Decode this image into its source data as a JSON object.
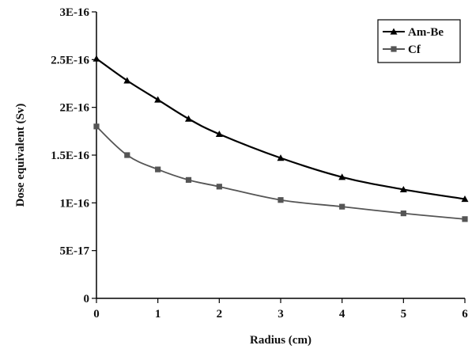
{
  "chart_data": {
    "type": "line",
    "title": "",
    "xlabel": "Radius (cm)",
    "ylabel": "Dose equivalent (Sv)",
    "xlim": [
      0,
      6
    ],
    "ylim": [
      0,
      3e-16
    ],
    "x_ticks": [
      0,
      1,
      2,
      3,
      4,
      5,
      6
    ],
    "x_tick_labels": [
      "0",
      "1",
      "2",
      "3",
      "4",
      "5",
      "6"
    ],
    "y_ticks": [
      0,
      5e-17,
      1e-16,
      1.5e-16,
      2e-16,
      2.5e-16,
      3e-16
    ],
    "y_tick_labels": [
      "0",
      "5E-17",
      "1E-16",
      "1.5E-16",
      "2E-16",
      "2.5E-16",
      "3E-16"
    ],
    "grid": false,
    "legend_position": "top-right",
    "series": [
      {
        "name": "Am-Be",
        "marker": "triangle",
        "color": "#000000",
        "x": [
          0,
          0.5,
          1,
          1.5,
          2,
          3,
          4,
          5,
          6
        ],
        "y": [
          2.51e-16,
          2.28e-16,
          2.08e-16,
          1.88e-16,
          1.72e-16,
          1.47e-16,
          1.27e-16,
          1.14e-16,
          1.04e-16
        ]
      },
      {
        "name": "Cf",
        "marker": "square",
        "color": "#555555",
        "x": [
          0,
          0.5,
          1,
          1.5,
          2,
          3,
          4,
          5,
          6
        ],
        "y": [
          1.8e-16,
          1.5e-16,
          1.35e-16,
          1.24e-16,
          1.17e-16,
          1.03e-16,
          9.6e-17,
          8.9e-17,
          8.3e-17
        ]
      }
    ]
  }
}
